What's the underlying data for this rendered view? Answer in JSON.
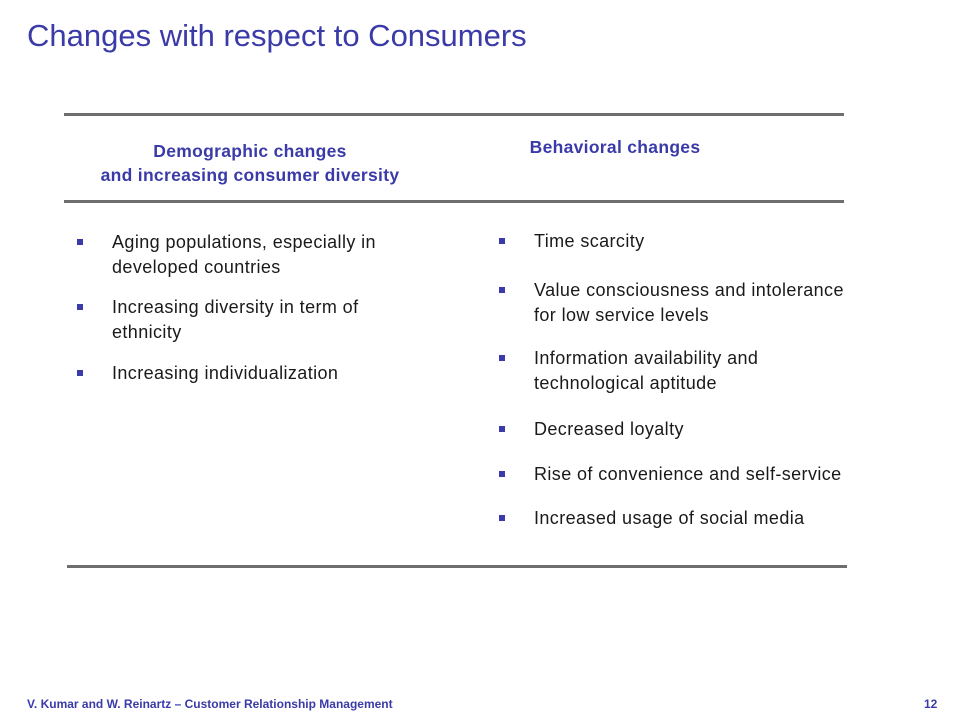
{
  "slide": {
    "title": "Changes with respect to Consumers"
  },
  "columns": {
    "left": {
      "heading_line1": "Demographic changes",
      "heading_line2": "and increasing consumer diversity",
      "items": [
        "Aging populations, especially in developed countries",
        "Increasing diversity in term of ethnicity",
        "Increasing individualization"
      ]
    },
    "right": {
      "heading": "Behavioral changes",
      "items": [
        "Time scarcity",
        "Value consciousness and intolerance for low service levels",
        "Information availability and technological aptitude",
        "Decreased loyalty",
        "Rise of convenience and self-service",
        "Increased usage of social media"
      ]
    }
  },
  "footer": {
    "citation": "V. Kumar and W. Reinartz – Customer Relationship Management",
    "page_number": "12"
  }
}
